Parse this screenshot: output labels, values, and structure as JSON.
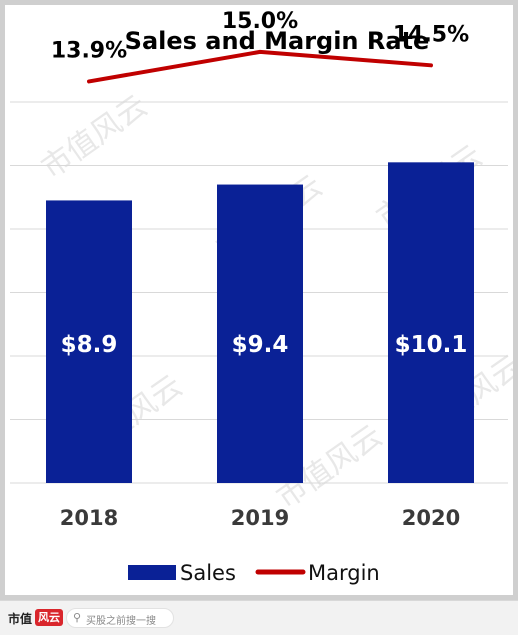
{
  "chart_data": {
    "type": "bar+line",
    "title": "Sales and Margin Rate",
    "categories": [
      "2018",
      "2019",
      "2020"
    ],
    "series": [
      {
        "name": "Sales",
        "type": "bar",
        "values": [
          8.9,
          9.4,
          10.1
        ],
        "labels": [
          "$8.9",
          "$9.4",
          "$10.1"
        ],
        "color": "#0a2196"
      },
      {
        "name": "Margin",
        "type": "line",
        "values": [
          13.9,
          15.0,
          14.5
        ],
        "labels": [
          "13.9%",
          "15.0%",
          "14.5%"
        ],
        "color": "#c00000"
      }
    ],
    "sales_ylim": [
      0,
      12
    ],
    "margin_ylim": [
      0,
      16
    ],
    "grid": true,
    "legend": "bottom"
  },
  "watermark": {
    "text": "市值风云"
  },
  "footer": {
    "logo_text": "市值",
    "logo_mark": "风云",
    "search_icon": "search-icon",
    "search_placeholder": "买股之前搜一搜"
  }
}
